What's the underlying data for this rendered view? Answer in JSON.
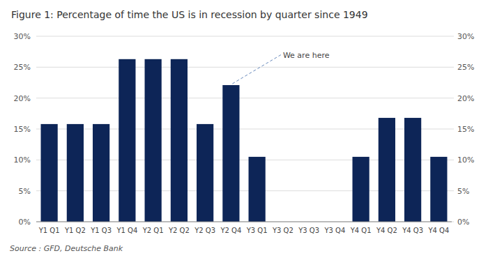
{
  "chart_data": {
    "type": "bar",
    "title": "Figure 1: Percentage of time the US is in recession by quarter since 1949",
    "categories": [
      "Y1 Q1",
      "Y1 Q2",
      "Y1 Q3",
      "Y1 Q4",
      "Y2 Q1",
      "Y2 Q2",
      "Y2 Q3",
      "Y2 Q4",
      "Y3 Q1",
      "Y3 Q2",
      "Y3 Q3",
      "Y3 Q4",
      "Y4 Q1",
      "Y4 Q2",
      "Y4 Q3",
      "Y4 Q4"
    ],
    "values": [
      0.158,
      0.158,
      0.158,
      0.263,
      0.263,
      0.263,
      0.158,
      0.221,
      0.105,
      0.0,
      0.0,
      0.0,
      0.105,
      0.168,
      0.168,
      0.105
    ],
    "color": "#0d2557",
    "ylim": [
      0,
      0.3
    ],
    "yticks": [
      {
        "value": 0,
        "label": "0%"
      },
      {
        "value": 0.05,
        "label": "5%"
      },
      {
        "value": 0.1,
        "label": "10%"
      },
      {
        "value": 0.15,
        "label": "15%"
      },
      {
        "value": 0.2,
        "label": "20%"
      },
      {
        "value": 0.25,
        "label": "25%"
      },
      {
        "value": 0.3,
        "label": "30%"
      }
    ],
    "y2lim": [
      0,
      0.3
    ],
    "y2ticks": [
      {
        "value": 0,
        "label": "0%"
      },
      {
        "value": 0.05,
        "label": "5%"
      },
      {
        "value": 0.1,
        "label": "10%"
      },
      {
        "value": 0.15,
        "label": "15%"
      },
      {
        "value": 0.2,
        "label": "20%"
      },
      {
        "value": 0.25,
        "label": "25%"
      },
      {
        "value": 0.3,
        "label": "30%"
      }
    ],
    "grid": true,
    "annotations": [
      {
        "text": "We are here",
        "category": "Y2 Q4"
      }
    ],
    "source": "Source : GFD, Deutsche Bank"
  }
}
